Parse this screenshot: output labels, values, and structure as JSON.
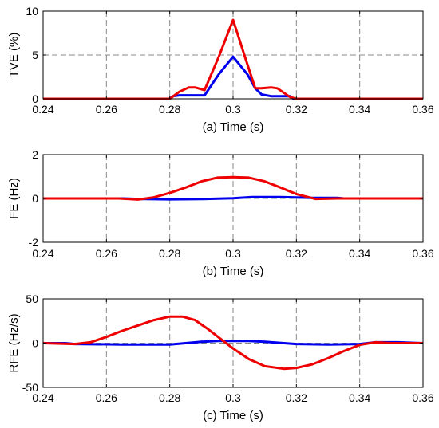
{
  "chart_data": [
    {
      "type": "line",
      "panel": "a",
      "ylabel": "TVE (%)",
      "xlabel": "(a) Time (s)",
      "xlim": [
        0.24,
        0.36
      ],
      "ylim": [
        0,
        10
      ],
      "xticks": [
        "0.24",
        "0.26",
        "0.28",
        "0.3",
        "0.32",
        "0.34",
        "0.36"
      ],
      "yticks": [
        "0",
        "5",
        "10"
      ],
      "grid": true,
      "series": [
        {
          "color": "#0000ee",
          "x": [
            0.24,
            0.28,
            0.281,
            0.283,
            0.288,
            0.291,
            0.2955,
            0.3,
            0.3045,
            0.307,
            0.309,
            0.312,
            0.314,
            0.318,
            0.319,
            0.36
          ],
          "y": [
            0,
            0,
            0.3,
            0.4,
            0.4,
            0.4,
            2.8,
            4.8,
            2.8,
            1.2,
            0.5,
            0.3,
            0.3,
            0.3,
            0,
            0
          ]
        },
        {
          "color": "#ee0000",
          "x": [
            0.24,
            0.28,
            0.283,
            0.286,
            0.288,
            0.291,
            0.2955,
            0.3,
            0.304,
            0.307,
            0.309,
            0.312,
            0.314,
            0.318,
            0.32,
            0.36
          ],
          "y": [
            0,
            0,
            0.8,
            1.3,
            1.3,
            1.0,
            4.8,
            9.0,
            4.5,
            1.2,
            1.2,
            1.3,
            1.2,
            0.2,
            0,
            0
          ]
        }
      ]
    },
    {
      "type": "line",
      "panel": "b",
      "ylabel": "FE (Hz)",
      "xlabel": "(b) Time (s)",
      "xlim": [
        0.24,
        0.36
      ],
      "ylim": [
        -2,
        2
      ],
      "xticks": [
        "0.24",
        "0.26",
        "0.28",
        "0.3",
        "0.32",
        "0.34",
        "0.36"
      ],
      "yticks": [
        "-2",
        "0",
        "2"
      ],
      "grid": true,
      "series": [
        {
          "color": "#0000ee",
          "x": [
            0.24,
            0.265,
            0.27,
            0.28,
            0.29,
            0.3,
            0.306,
            0.315,
            0.325,
            0.333,
            0.335,
            0.36
          ],
          "y": [
            0,
            0,
            -0.02,
            -0.04,
            -0.03,
            0.01,
            0.06,
            0.06,
            0.03,
            0.03,
            0,
            0
          ]
        },
        {
          "color": "#ee0000",
          "x": [
            0.24,
            0.264,
            0.27,
            0.275,
            0.28,
            0.285,
            0.29,
            0.295,
            0.3,
            0.305,
            0.31,
            0.315,
            0.32,
            0.326,
            0.333,
            0.36
          ],
          "y": [
            0,
            0,
            -0.05,
            0.05,
            0.25,
            0.5,
            0.78,
            0.95,
            0.97,
            0.95,
            0.78,
            0.5,
            0.2,
            -0.02,
            0,
            0
          ]
        }
      ]
    },
    {
      "type": "line",
      "panel": "c",
      "ylabel": "RFE (Hz/s)",
      "xlabel": "(c) Time (s)",
      "xlim": [
        0.24,
        0.36
      ],
      "ylim": [
        -50,
        50
      ],
      "xticks": [
        "0.24",
        "0.26",
        "0.28",
        "0.3",
        "0.32",
        "0.34",
        "0.36"
      ],
      "yticks": [
        "-50",
        "0",
        "50"
      ],
      "grid": true,
      "series": [
        {
          "color": "#0000ee",
          "x": [
            0.24,
            0.247,
            0.25,
            0.265,
            0.28,
            0.29,
            0.295,
            0.305,
            0.31,
            0.32,
            0.33,
            0.34,
            0.345,
            0.352,
            0.36
          ],
          "y": [
            0,
            0,
            -1,
            -1.5,
            -1.5,
            1.5,
            2.5,
            2.5,
            1.5,
            -1,
            -1.5,
            -1,
            1,
            1,
            0
          ]
        },
        {
          "color": "#ee0000",
          "x": [
            0.24,
            0.25,
            0.255,
            0.26,
            0.265,
            0.27,
            0.275,
            0.28,
            0.284,
            0.288,
            0.292,
            0.296,
            0.3,
            0.305,
            0.31,
            0.316,
            0.32,
            0.325,
            0.33,
            0.335,
            0.34,
            0.345,
            0.35,
            0.36
          ],
          "y": [
            0,
            -1,
            1,
            7,
            14,
            20,
            26,
            30,
            30,
            26,
            16,
            5,
            -6,
            -18,
            -26,
            -29,
            -28,
            -24,
            -17,
            -9,
            -2,
            1,
            0,
            0
          ]
        }
      ]
    }
  ]
}
